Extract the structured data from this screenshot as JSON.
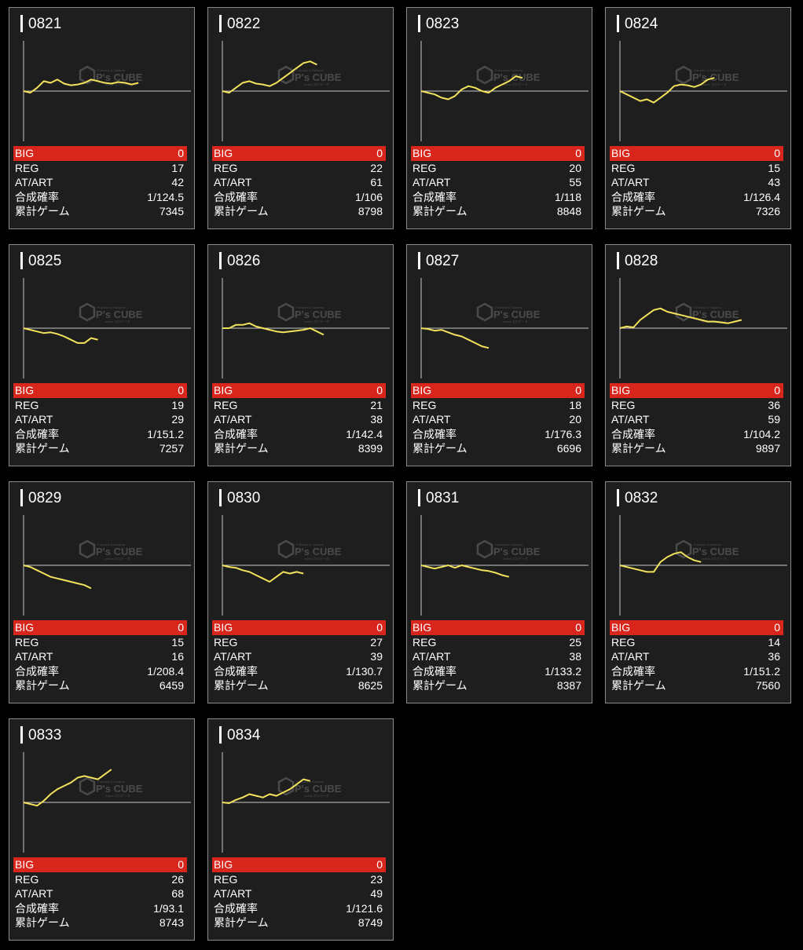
{
  "labels": {
    "big": "BIG",
    "reg": "REG",
    "atart": "AT/ART",
    "prob": "合成確率",
    "games": "累計ゲーム"
  },
  "colors": {
    "background": "#000000",
    "card": "#1e1e1e",
    "big_bar": "#d9261c",
    "line": "#f2e25c",
    "axis": "#c8c8c8"
  },
  "watermark": {
    "text": "P's CUBE",
    "small_top": "Fukuoka & Saitama",
    "small_bottom": "online スロデータ"
  },
  "machines": [
    {
      "id": "0821",
      "big": "0",
      "reg": "17",
      "atart": "42",
      "prob": "1/124.5",
      "games": "7345",
      "trend": [
        0,
        -2,
        4,
        12,
        10,
        14,
        9,
        7,
        8,
        10,
        14,
        12,
        10,
        9,
        11,
        10,
        8,
        10
      ]
    },
    {
      "id": "0822",
      "big": "0",
      "reg": "22",
      "atart": "61",
      "prob": "1/106",
      "games": "8798",
      "trend": [
        0,
        -2,
        4,
        10,
        12,
        9,
        8,
        6,
        10,
        16,
        22,
        28,
        34,
        36,
        32
      ]
    },
    {
      "id": "0823",
      "big": "0",
      "reg": "20",
      "atart": "55",
      "prob": "1/118",
      "games": "8848",
      "trend": [
        0,
        -2,
        -4,
        -8,
        -10,
        -6,
        2,
        6,
        4,
        0,
        -2,
        4,
        8,
        12,
        18,
        16
      ]
    },
    {
      "id": "0824",
      "big": "0",
      "reg": "15",
      "atart": "43",
      "prob": "1/126.4",
      "games": "7326",
      "trend": [
        0,
        -4,
        -8,
        -12,
        -10,
        -14,
        -8,
        -2,
        6,
        8,
        7,
        5,
        8,
        14,
        16
      ]
    },
    {
      "id": "0825",
      "big": "0",
      "reg": "19",
      "atart": "29",
      "prob": "1/151.2",
      "games": "7257",
      "trend": [
        0,
        -2,
        -4,
        -6,
        -5,
        -7,
        -10,
        -14,
        -18,
        -18,
        -12,
        -14
      ]
    },
    {
      "id": "0826",
      "big": "0",
      "reg": "21",
      "atart": "38",
      "prob": "1/142.4",
      "games": "8399",
      "trend": [
        0,
        0,
        4,
        4,
        6,
        2,
        0,
        -2,
        -4,
        -5,
        -4,
        -3,
        -2,
        0,
        -4,
        -8
      ]
    },
    {
      "id": "0827",
      "big": "0",
      "reg": "18",
      "atart": "20",
      "prob": "1/176.3",
      "games": "6696",
      "trend": [
        0,
        -1,
        -3,
        -2,
        -5,
        -8,
        -10,
        -14,
        -18,
        -22,
        -24
      ]
    },
    {
      "id": "0828",
      "big": "0",
      "reg": "36",
      "atart": "59",
      "prob": "1/104.2",
      "games": "9897",
      "trend": [
        0,
        2,
        1,
        10,
        16,
        22,
        24,
        20,
        18,
        16,
        14,
        12,
        10,
        8,
        8,
        7,
        6,
        8,
        10
      ]
    },
    {
      "id": "0829",
      "big": "0",
      "reg": "15",
      "atart": "16",
      "prob": "1/208.4",
      "games": "6459",
      "trend": [
        0,
        -2,
        -6,
        -10,
        -14,
        -16,
        -18,
        -20,
        -22,
        -24,
        -28
      ]
    },
    {
      "id": "0830",
      "big": "0",
      "reg": "27",
      "atart": "39",
      "prob": "1/130.7",
      "games": "8625",
      "trend": [
        0,
        -2,
        -3,
        -6,
        -8,
        -12,
        -16,
        -20,
        -14,
        -8,
        -10,
        -8,
        -10
      ]
    },
    {
      "id": "0831",
      "big": "0",
      "reg": "25",
      "atart": "38",
      "prob": "1/133.2",
      "games": "8387",
      "trend": [
        0,
        -2,
        -4,
        -2,
        0,
        -3,
        0,
        -2,
        -4,
        -6,
        -7,
        -9,
        -12,
        -14
      ]
    },
    {
      "id": "0832",
      "big": "0",
      "reg": "14",
      "atart": "36",
      "prob": "1/151.2",
      "games": "7560",
      "trend": [
        0,
        -2,
        -4,
        -6,
        -8,
        -8,
        4,
        10,
        14,
        16,
        10,
        6,
        4
      ]
    },
    {
      "id": "0833",
      "big": "0",
      "reg": "26",
      "atart": "68",
      "prob": "1/93.1",
      "games": "8743",
      "trend": [
        0,
        -2,
        -4,
        2,
        10,
        16,
        20,
        24,
        30,
        32,
        30,
        28,
        34,
        40
      ]
    },
    {
      "id": "0834",
      "big": "0",
      "reg": "23",
      "atart": "49",
      "prob": "1/121.6",
      "games": "8749",
      "trend": [
        0,
        -1,
        3,
        6,
        10,
        8,
        6,
        10,
        8,
        12,
        16,
        22,
        28,
        26
      ]
    }
  ]
}
